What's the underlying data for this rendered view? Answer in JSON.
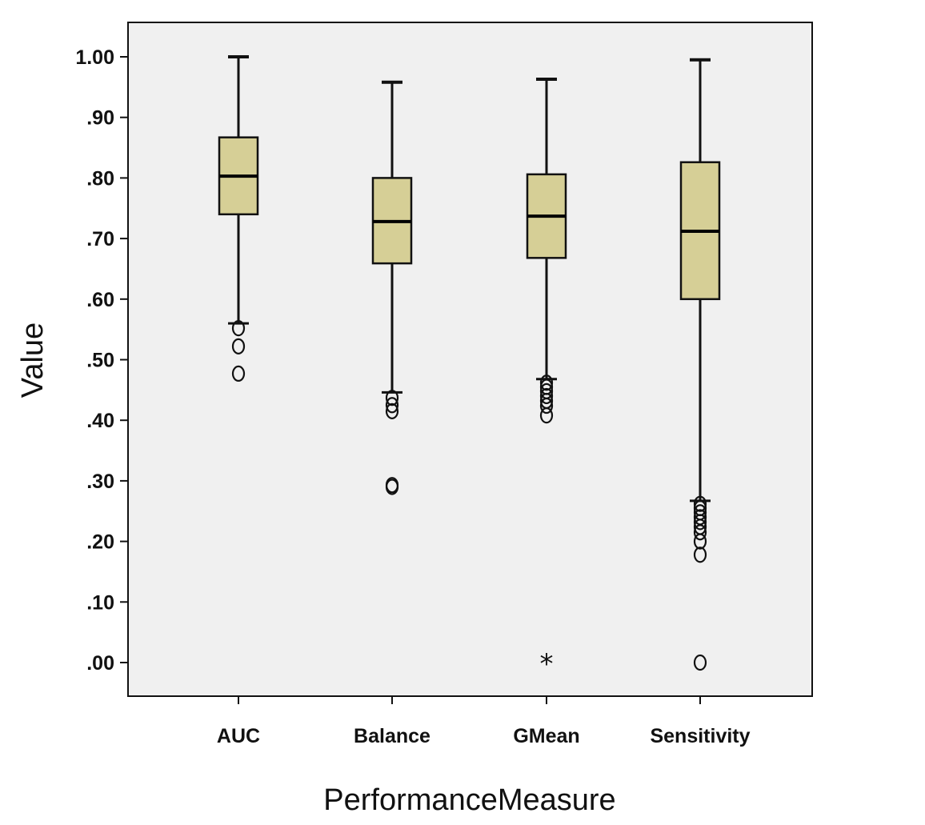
{
  "chart_data": {
    "type": "boxplot",
    "title": "",
    "xlabel": "PerformanceMeasure",
    "ylabel": "Value",
    "ylim": [
      -0.06,
      1.13
    ],
    "yticks": [
      0,
      0.1,
      0.2,
      0.3,
      0.4,
      0.5,
      0.6,
      0.7,
      0.8,
      0.9,
      1.0
    ],
    "ytick_labels": [
      ".00",
      ".10",
      ".20",
      ".30",
      ".40",
      ".50",
      ".60",
      ".70",
      ".80",
      ".90",
      "1.00"
    ],
    "categories": [
      "AUC",
      "Balance",
      "GMean",
      "Sensitivity"
    ],
    "grid": false,
    "box_color": "#d6cf96",
    "background_color": "#f0f0f0",
    "boxes": [
      {
        "name": "AUC",
        "whisker_low": 0.56,
        "q1": 0.74,
        "median": 0.803,
        "q3": 0.867,
        "whisker_high": 1.0,
        "outliers": [
          0.552,
          0.522,
          0.477
        ],
        "extremes": []
      },
      {
        "name": "Balance",
        "whisker_low": 0.446,
        "q1": 0.659,
        "median": 0.728,
        "q3": 0.8,
        "whisker_high": 0.958,
        "outliers": [
          0.437,
          0.425,
          0.415,
          0.293,
          0.29
        ],
        "extremes": []
      },
      {
        "name": "GMean",
        "whisker_low": 0.468,
        "q1": 0.668,
        "median": 0.737,
        "q3": 0.806,
        "whisker_high": 0.963,
        "outliers": [
          0.462,
          0.455,
          0.448,
          0.44,
          0.432,
          0.424,
          0.408
        ],
        "extremes": [
          0.0
        ]
      },
      {
        "name": "Sensitivity",
        "whisker_low": 0.267,
        "q1": 0.6,
        "median": 0.712,
        "q3": 0.826,
        "whisker_high": 0.995,
        "outliers": [
          0.262,
          0.255,
          0.248,
          0.24,
          0.232,
          0.224,
          0.215,
          0.2,
          0.178,
          0.0
        ],
        "extremes": []
      }
    ]
  }
}
